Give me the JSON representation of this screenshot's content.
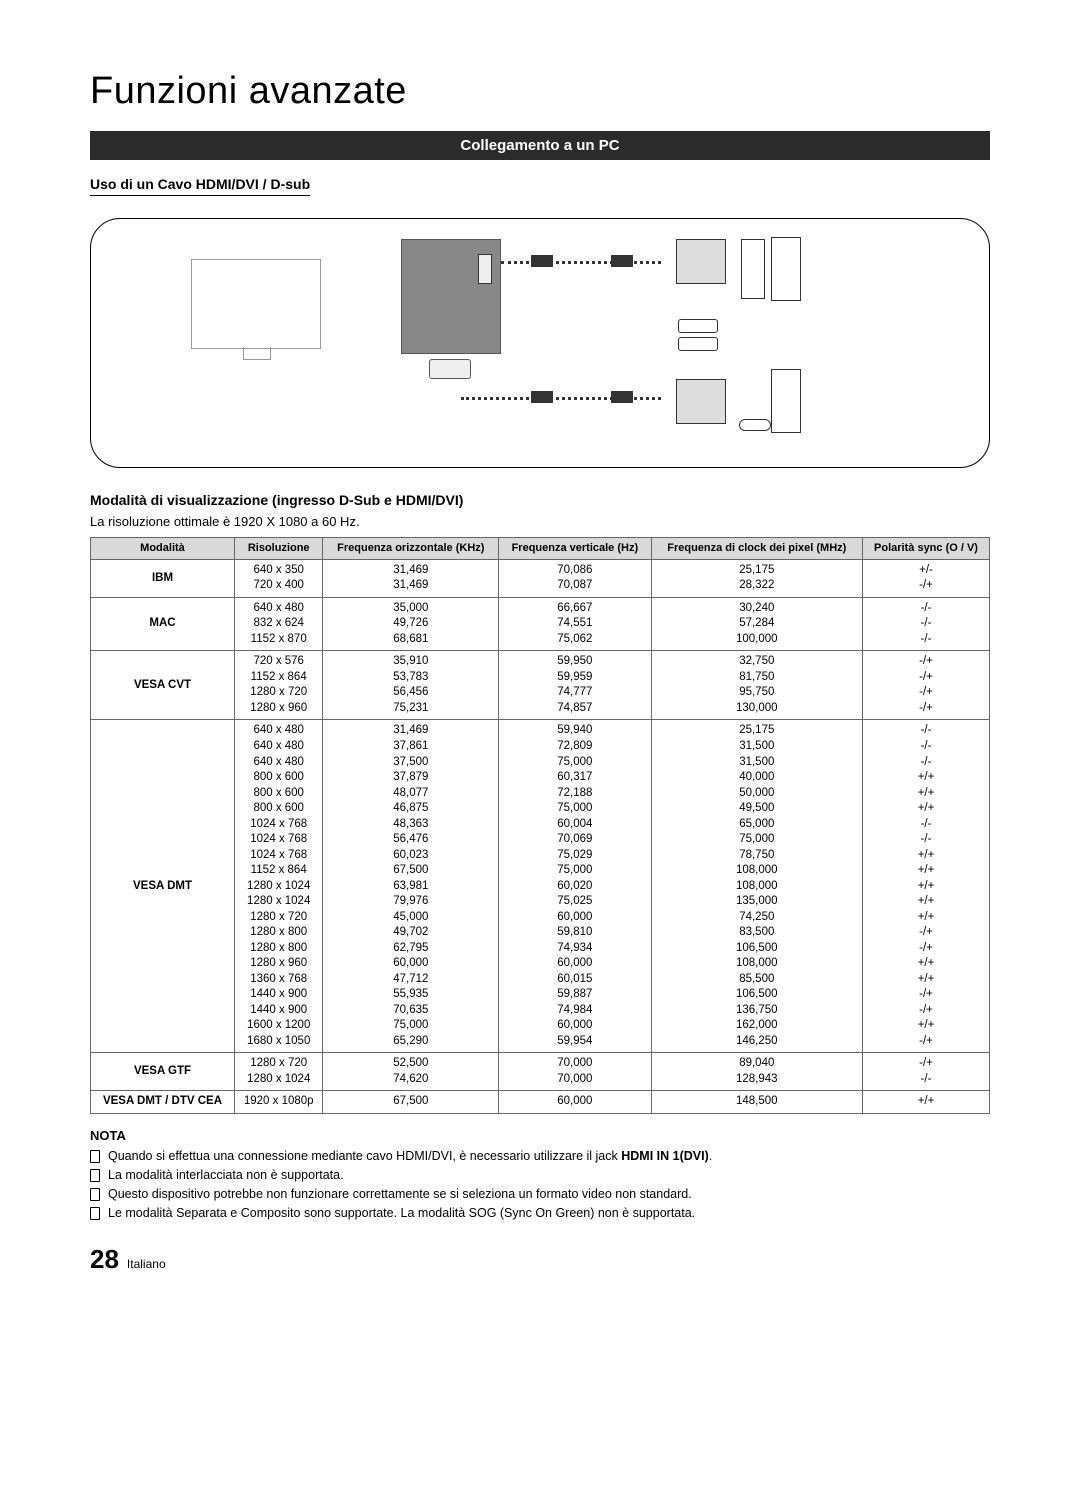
{
  "page": {
    "title": "Funzioni avanzate",
    "bar_label": "Collegamento a un PC",
    "subhead": "Uso di un Cavo HDMI/DVI / D-sub",
    "section2_title": "Modalità di visualizzazione (ingresso D-Sub e HDMI/DVI)",
    "section2_desc": "La risoluzione ottimale è 1920 X 1080 a 60 Hz.",
    "nota_head": "NOTA",
    "notes": [
      {
        "pre": "Quando si effettua una connessione mediante cavo HDMI/DVI, è necessario utilizzare il jack ",
        "bold": "HDMI IN 1(DVI)",
        "post": "."
      },
      {
        "pre": "La modalità interlacciata non è supportata.",
        "bold": "",
        "post": ""
      },
      {
        "pre": "Questo dispositivo potrebbe non funzionare correttamente se si seleziona un formato video non standard.",
        "bold": "",
        "post": ""
      },
      {
        "pre": "Le modalità Separata e Composito sono supportate. La modalità SOG (Sync On Green) non è supportata.",
        "bold": "",
        "post": ""
      }
    ],
    "footer_page": "28",
    "footer_lang": "Italiano"
  },
  "table": {
    "headers": [
      "Modalità",
      "Risoluzione",
      "Frequenza orizzontale (KHz)",
      "Frequenza verticale (Hz)",
      "Frequenza di clock dei pixel  (MHz)",
      "Polarità sync (O / V)"
    ],
    "colors": {
      "header_bg": "#d9d9d9",
      "border": "#666666"
    },
    "groups": [
      {
        "mode": "IBM",
        "rows": [
          [
            "640 x 350",
            "31,469",
            "70,086",
            "25,175",
            "+/-"
          ],
          [
            "720 x 400",
            "31,469",
            "70,087",
            "28,322",
            "-/+"
          ]
        ]
      },
      {
        "mode": "MAC",
        "rows": [
          [
            "640 x 480",
            "35,000",
            "66,667",
            "30,240",
            "-/-"
          ],
          [
            "832 x 624",
            "49,726",
            "74,551",
            "57,284",
            "-/-"
          ],
          [
            "1152 x 870",
            "68,681",
            "75,062",
            "100,000",
            "-/-"
          ]
        ]
      },
      {
        "mode": "VESA CVT",
        "rows": [
          [
            "720 x 576",
            "35,910",
            "59,950",
            "32,750",
            "-/+"
          ],
          [
            "1152 x 864",
            "53,783",
            "59,959",
            "81,750",
            "-/+"
          ],
          [
            "1280 x 720",
            "56,456",
            "74,777",
            "95,750",
            "-/+"
          ],
          [
            "1280 x 960",
            "75,231",
            "74,857",
            "130,000",
            "-/+"
          ]
        ]
      },
      {
        "mode": "VESA DMT",
        "rows": [
          [
            "640 x 480",
            "31,469",
            "59,940",
            "25,175",
            "-/-"
          ],
          [
            "640 x 480",
            "37,861",
            "72,809",
            "31,500",
            "-/-"
          ],
          [
            "640 x 480",
            "37,500",
            "75,000",
            "31,500",
            "-/-"
          ],
          [
            "800 x 600",
            "37,879",
            "60,317",
            "40,000",
            "+/+"
          ],
          [
            "800 x 600",
            "48,077",
            "72,188",
            "50,000",
            "+/+"
          ],
          [
            "800 x 600",
            "46,875",
            "75,000",
            "49,500",
            "+/+"
          ],
          [
            "1024 x 768",
            "48,363",
            "60,004",
            "65,000",
            "-/-"
          ],
          [
            "1024 x 768",
            "56,476",
            "70,069",
            "75,000",
            "-/-"
          ],
          [
            "1024 x 768",
            "60,023",
            "75,029",
            "78,750",
            "+/+"
          ],
          [
            "1152 x 864",
            "67,500",
            "75,000",
            "108,000",
            "+/+"
          ],
          [
            "1280 x 1024",
            "63,981",
            "60,020",
            "108,000",
            "+/+"
          ],
          [
            "1280 x 1024",
            "79,976",
            "75,025",
            "135,000",
            "+/+"
          ],
          [
            "1280 x 720",
            "45,000",
            "60,000",
            "74,250",
            "+/+"
          ],
          [
            "1280 x 800",
            "49,702",
            "59,810",
            "83,500",
            "-/+"
          ],
          [
            "1280 x 800",
            "62,795",
            "74,934",
            "106,500",
            "-/+"
          ],
          [
            "1280 x 960",
            "60,000",
            "60,000",
            "108,000",
            "+/+"
          ],
          [
            "1360 x 768",
            "47,712",
            "60,015",
            "85,500",
            "+/+"
          ],
          [
            "1440 x 900",
            "55,935",
            "59,887",
            "106,500",
            "-/+"
          ],
          [
            "1440 x 900",
            "70,635",
            "74,984",
            "136,750",
            "-/+"
          ],
          [
            "1600 x 1200",
            "75,000",
            "60,000",
            "162,000",
            "+/+"
          ],
          [
            "1680 x 1050",
            "65,290",
            "59,954",
            "146,250",
            "-/+"
          ]
        ]
      },
      {
        "mode": "VESA GTF",
        "rows": [
          [
            "1280 x 720",
            "52,500",
            "70,000",
            "89,040",
            "-/+"
          ],
          [
            "1280 x 1024",
            "74,620",
            "70,000",
            "128,943",
            "-/-"
          ]
        ]
      },
      {
        "mode": "VESA DMT / DTV CEA",
        "rows": [
          [
            "1920 x 1080p",
            "67,500",
            "60,000",
            "148,500",
            "+/+"
          ]
        ]
      }
    ]
  }
}
